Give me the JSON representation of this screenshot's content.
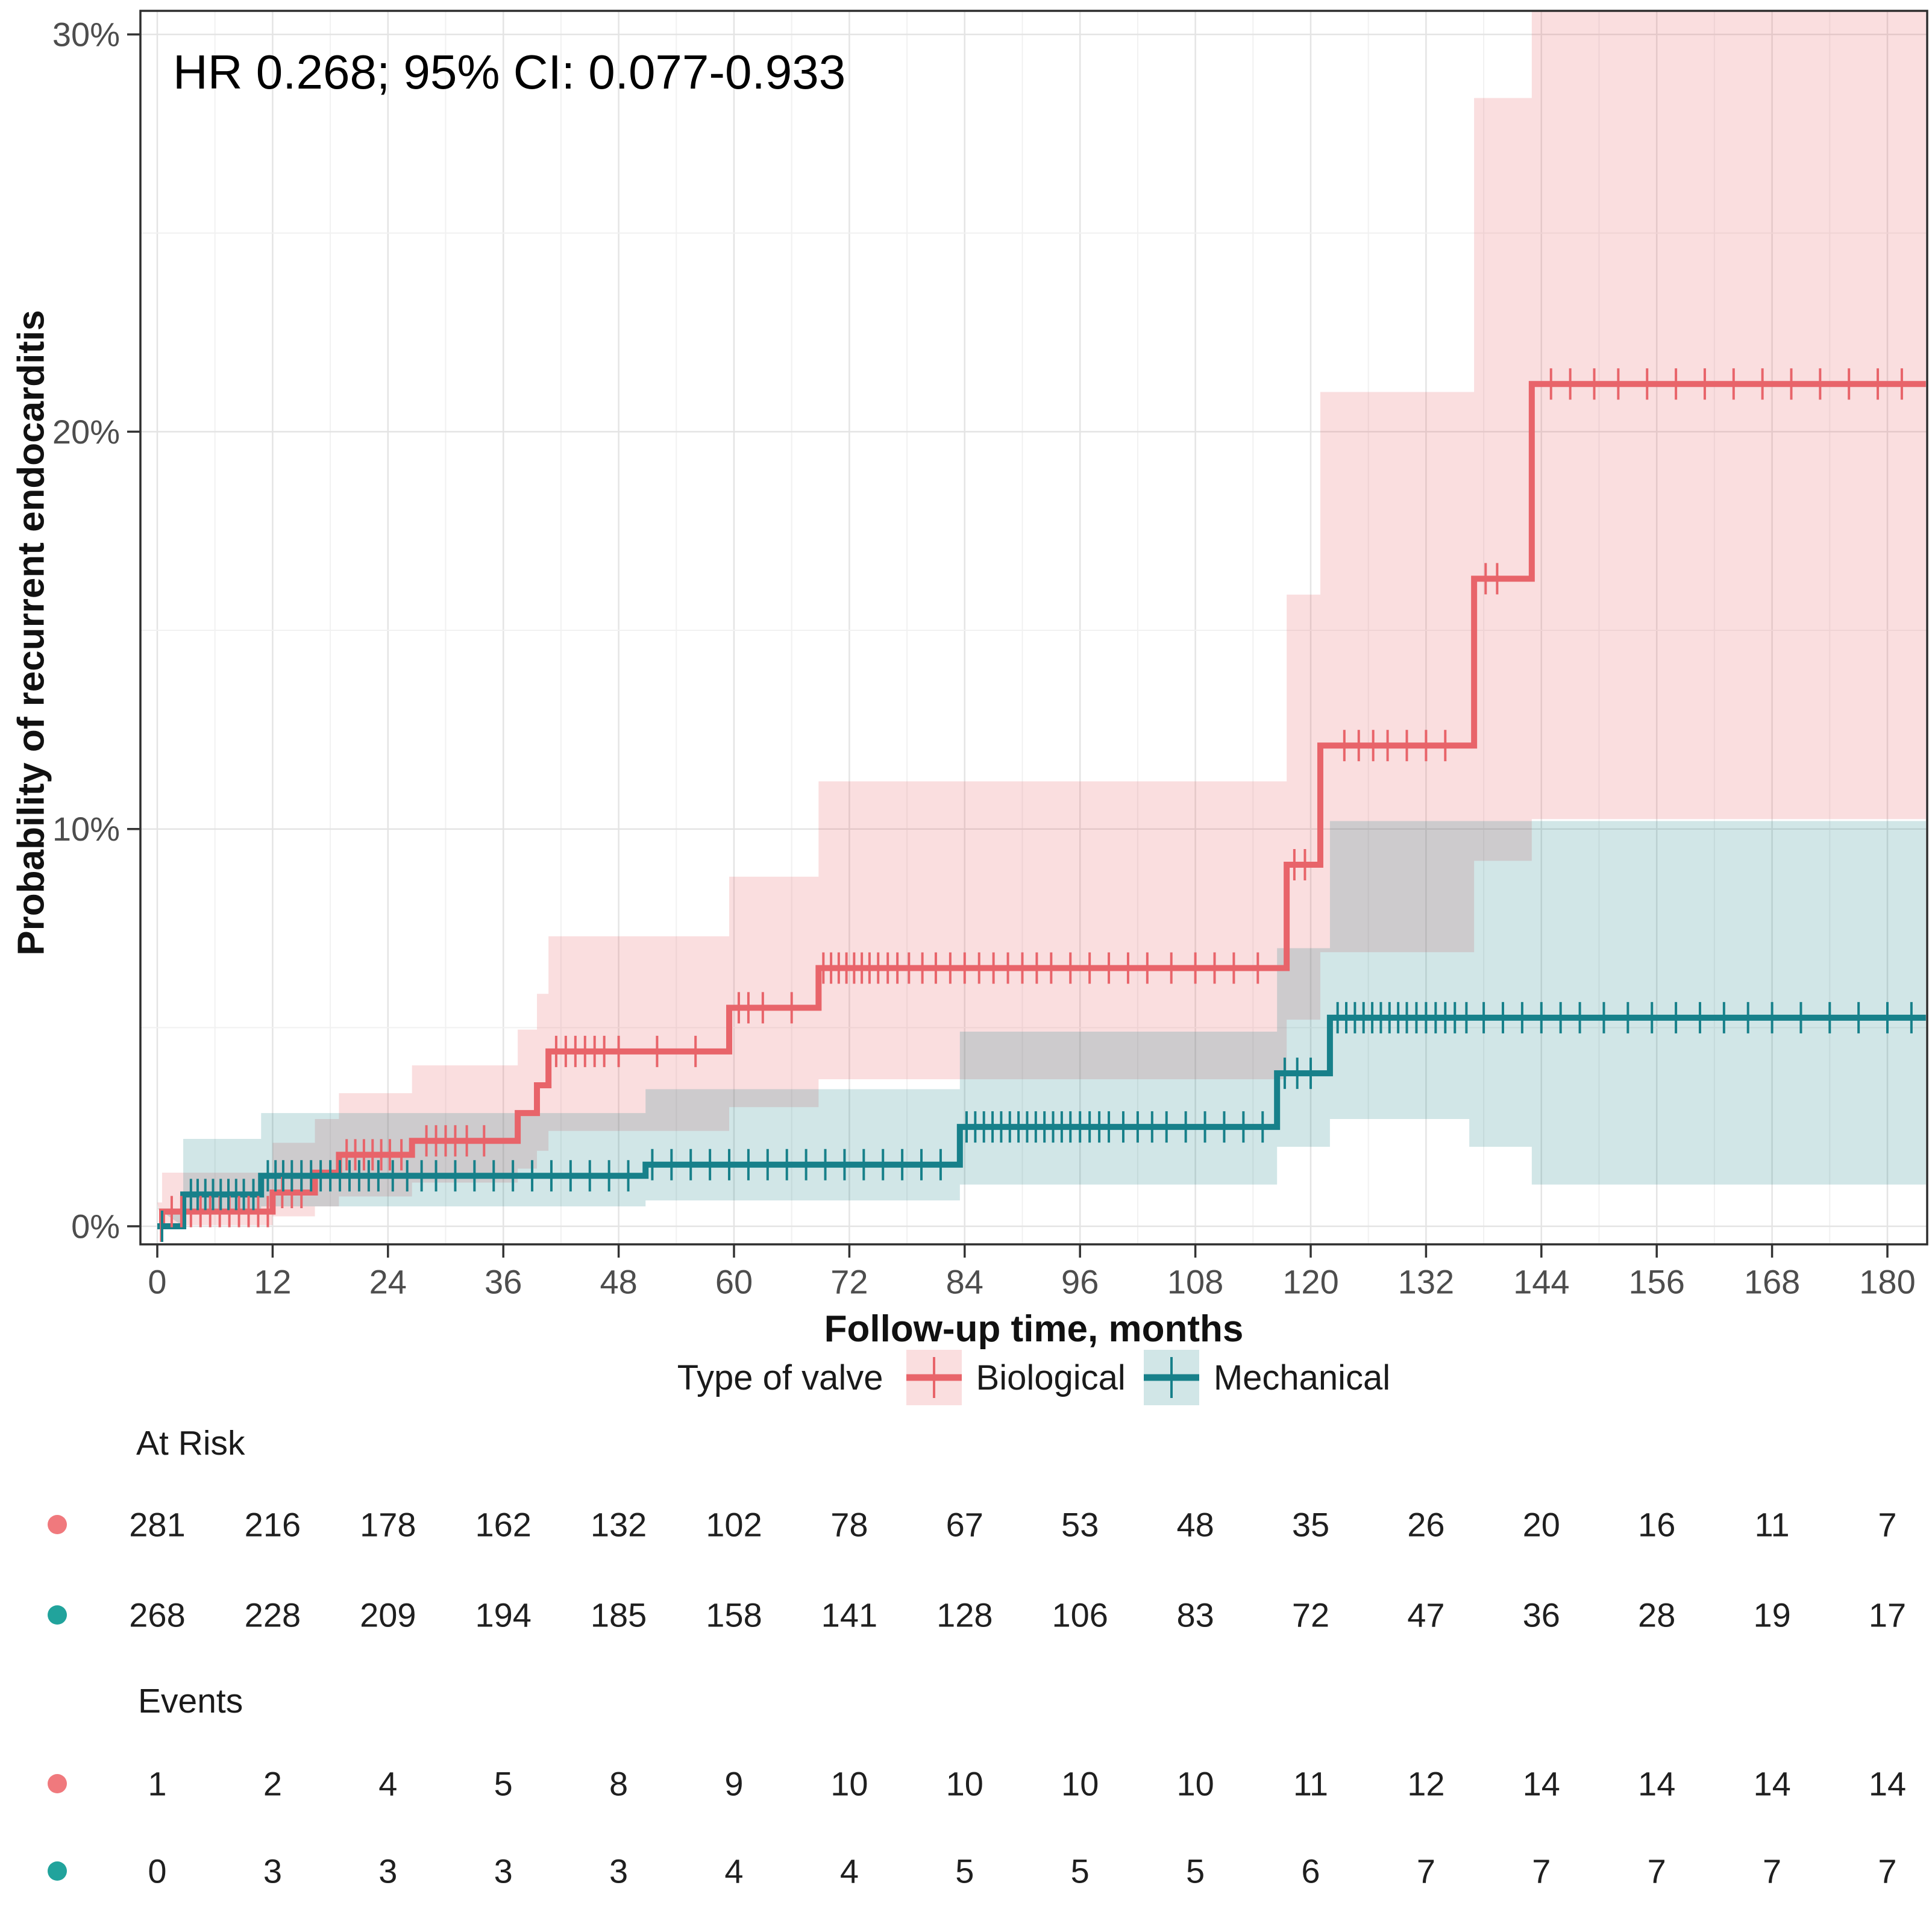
{
  "chart_data": {
    "type": "line",
    "variant": "kaplan-meier-step-cumulative-incidence",
    "annotation": "HR 0.268; 95% CI: 0.077-0.933",
    "xlabel": "Follow-up time, months",
    "ylabel": "Probability of recurrent endocarditis",
    "xlim": [
      0,
      184
    ],
    "ylim": [
      0,
      30.6
    ],
    "x_ticks": [
      0,
      12,
      24,
      36,
      48,
      60,
      72,
      84,
      96,
      108,
      120,
      132,
      144,
      156,
      168,
      180
    ],
    "y_ticks": [
      {
        "value": 0,
        "label": "0%"
      },
      {
        "value": 10,
        "label": "10%"
      },
      {
        "value": 20,
        "label": "20%"
      },
      {
        "value": 30,
        "label": "30%"
      }
    ],
    "grid": {
      "shown": true,
      "x_minor_step": 6,
      "y_minor_step": 5
    },
    "legend": {
      "title": "Type of valve",
      "position": "bottom"
    },
    "series": [
      {
        "name": "Biological",
        "line_color": "#E8646A",
        "band_color": "rgba(231,99,106,0.21)",
        "dot_color": "#F0797D",
        "steps": [
          [
            0,
            0
          ],
          [
            0.5,
            0.37
          ],
          [
            12,
            0.85
          ],
          [
            16.4,
            1.35
          ],
          [
            18.9,
            1.8
          ],
          [
            26.5,
            2.15
          ],
          [
            37.5,
            2.85
          ],
          [
            39.5,
            3.55
          ],
          [
            40.7,
            4.4
          ],
          [
            59.5,
            5.5
          ],
          [
            68.8,
            6.5
          ],
          [
            117.5,
            9.1
          ],
          [
            121,
            12.1
          ],
          [
            137,
            16.3
          ],
          [
            143,
            21.2
          ],
          [
            184,
            21.2
          ]
        ],
        "ci": [
          [
            0,
            0.6,
            0
          ],
          [
            0.5,
            1.35,
            0.03
          ],
          [
            12,
            2.1,
            0.25
          ],
          [
            16.4,
            2.7,
            0.5
          ],
          [
            18.9,
            3.35,
            0.75
          ],
          [
            26.5,
            4.05,
            1.1
          ],
          [
            37.5,
            4.95,
            1.45
          ],
          [
            39.5,
            5.85,
            1.9
          ],
          [
            40.7,
            7.3,
            2.4
          ],
          [
            59.5,
            8.8,
            3.0
          ],
          [
            68.8,
            11.2,
            3.7
          ],
          [
            117.5,
            15.9,
            5.2
          ],
          [
            121,
            21.0,
            6.9
          ],
          [
            137,
            28.4,
            9.2
          ],
          [
            143,
            31.5,
            10.25
          ],
          [
            184,
            31.5,
            10.25
          ]
        ],
        "censor_times": [
          0.4,
          1.5,
          2.5,
          3.5,
          4.5,
          5.5,
          6.5,
          7.5,
          8.5,
          9.5,
          10.5,
          11.5,
          13,
          14,
          15,
          19.7,
          20.6,
          21.5,
          22.4,
          23.3,
          24.2,
          25.4,
          28,
          29,
          30,
          31,
          32.2,
          34,
          41.5,
          42.5,
          43.5,
          44.5,
          45.5,
          46.5,
          48,
          52,
          56,
          60.5,
          61.5,
          63,
          66,
          69.3,
          70.1,
          70.9,
          71.7,
          72.5,
          73.3,
          74.1,
          75,
          76,
          77,
          78.2,
          79.6,
          81,
          82.5,
          84,
          85.5,
          87,
          88.5,
          90,
          91.5,
          93,
          95,
          97,
          99,
          101,
          103,
          105.5,
          108,
          110,
          112,
          114.5,
          118.3,
          119.4,
          123.5,
          125,
          126.5,
          128,
          130,
          132,
          134,
          138.2,
          139.4,
          145,
          147,
          149.5,
          152,
          155,
          158,
          161,
          164,
          167,
          170,
          173,
          176,
          179,
          181.5
        ]
      },
      {
        "name": "Mechanical",
        "line_color": "#17808A",
        "band_color": "rgba(23,130,135,0.20)",
        "dot_color": "#21A39C",
        "steps": [
          [
            0,
            0
          ],
          [
            2.7,
            0.8
          ],
          [
            10.8,
            1.27
          ],
          [
            50.8,
            1.55
          ],
          [
            83.5,
            2.5
          ],
          [
            116.5,
            3.85
          ],
          [
            122,
            5.25
          ],
          [
            184,
            5.25
          ]
        ],
        "ci": [
          [
            0,
            0.45,
            0
          ],
          [
            2.7,
            2.2,
            0.3
          ],
          [
            10.8,
            2.85,
            0.5
          ],
          [
            50.8,
            3.45,
            0.65
          ],
          [
            83.5,
            4.9,
            1.05
          ],
          [
            116.5,
            7.0,
            2.0
          ],
          [
            122,
            10.2,
            2.7
          ],
          [
            136.5,
            10.2,
            2.0
          ],
          [
            143,
            10.2,
            1.05
          ],
          [
            184,
            10.2,
            1.05
          ]
        ],
        "censor_times": [
          0.5,
          3.5,
          4.2,
          5,
          5.8,
          6.6,
          7.4,
          8.2,
          9,
          10,
          11.5,
          12.3,
          13.1,
          14,
          15,
          16,
          17,
          18,
          19,
          20,
          21,
          22,
          23,
          24.5,
          26,
          27.5,
          29,
          31,
          33,
          35,
          37,
          39,
          41,
          43,
          45,
          47,
          49,
          51.5,
          53.5,
          55.5,
          57.5,
          59.5,
          61.5,
          63.5,
          65.5,
          67.5,
          69.5,
          71.5,
          73.5,
          75.5,
          77.5,
          79.5,
          81.5,
          84.2,
          85.1,
          86,
          86.9,
          87.8,
          88.7,
          89.6,
          90.5,
          91.4,
          92.3,
          93.2,
          94.1,
          95,
          96,
          97,
          98,
          99,
          100.5,
          102,
          103.5,
          105,
          107,
          109,
          111,
          113,
          115,
          117.3,
          118.6,
          120,
          122.8,
          123.7,
          124.6,
          125.5,
          126.4,
          127.3,
          128.2,
          129.1,
          130,
          131,
          132,
          133,
          134,
          135,
          136.2,
          138,
          140,
          142,
          144,
          146,
          148,
          150.5,
          153,
          155.5,
          158,
          160.5,
          163,
          165.5,
          168,
          171,
          174,
          177,
          180,
          182.5
        ]
      }
    ],
    "risk_table": {
      "at_risk_label": "At Risk",
      "events_label": "Events",
      "times": [
        0,
        12,
        24,
        36,
        48,
        60,
        72,
        84,
        96,
        108,
        120,
        132,
        144,
        156,
        168,
        180
      ],
      "rows": [
        {
          "series": "Biological",
          "at_risk": [
            281,
            216,
            178,
            162,
            132,
            102,
            78,
            67,
            53,
            48,
            35,
            26,
            20,
            16,
            11,
            7
          ],
          "events": [
            1,
            2,
            4,
            5,
            8,
            9,
            10,
            10,
            10,
            10,
            11,
            12,
            14,
            14,
            14,
            14
          ]
        },
        {
          "series": "Mechanical",
          "at_risk": [
            268,
            228,
            209,
            194,
            185,
            158,
            141,
            128,
            106,
            83,
            72,
            47,
            36,
            28,
            19,
            17
          ],
          "events": [
            0,
            3,
            3,
            3,
            3,
            4,
            4,
            5,
            5,
            5,
            6,
            7,
            7,
            7,
            7,
            7
          ]
        }
      ]
    }
  }
}
